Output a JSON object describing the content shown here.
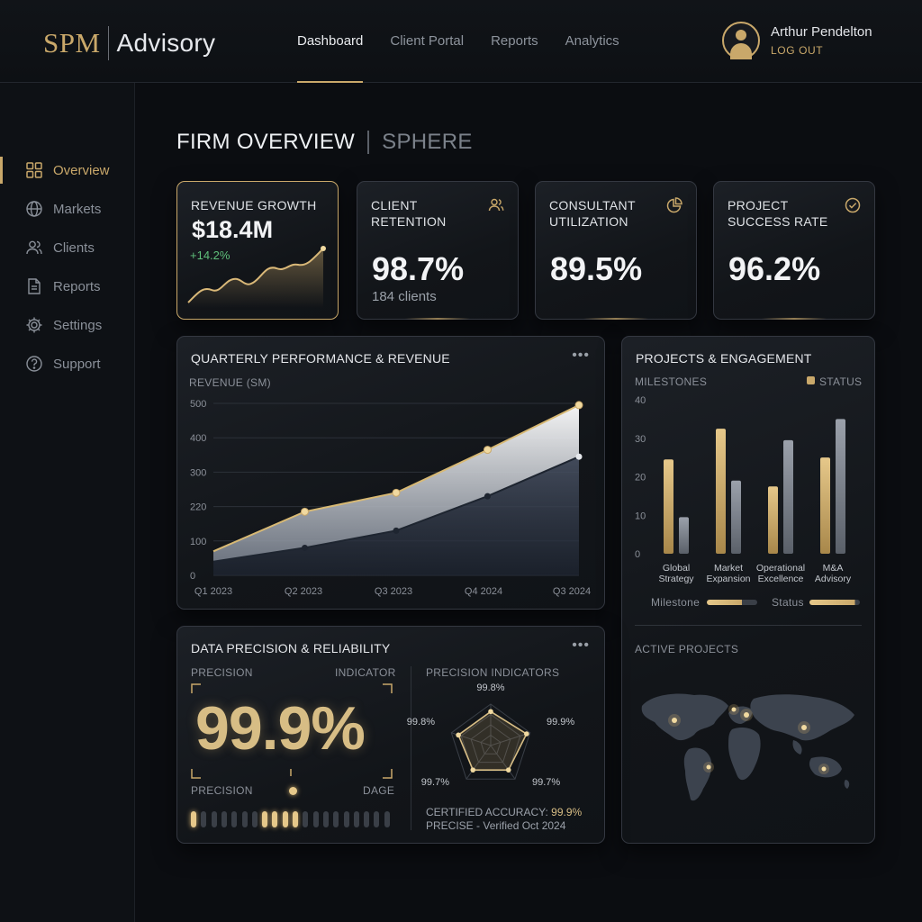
{
  "brand": {
    "mark": "SPM",
    "name": "Advisory"
  },
  "nav": {
    "dashboard": "Dashboard",
    "client_portal": "Client Portal",
    "reports": "Reports",
    "analytics": "Analytics"
  },
  "user": {
    "name": "Arthur Pendelton",
    "logout": "LOG OUT"
  },
  "sidebar": {
    "items": [
      {
        "label": "Overview",
        "icon": "grid-icon"
      },
      {
        "label": "Markets",
        "icon": "globe-icon"
      },
      {
        "label": "Clients",
        "icon": "users-icon"
      },
      {
        "label": "Reports",
        "icon": "document-icon"
      },
      {
        "label": "Settings",
        "icon": "gear-icon"
      },
      {
        "label": "Support",
        "icon": "help-icon"
      }
    ]
  },
  "page": {
    "title": "FIRM OVERVIEW",
    "subtitle": "SPHERE"
  },
  "kpis": {
    "revenue": {
      "label": "REVENUE GROWTH",
      "value": "$18.4M",
      "change": "+14.2%"
    },
    "retention": {
      "label_1": "CLIENT",
      "label_2": "RETENTION",
      "value": "98.7%",
      "sub": "184 clients"
    },
    "utilization": {
      "label_1": "CONSULTANT",
      "label_2": "UTILIZATION",
      "value": "89.5%"
    },
    "success": {
      "label_1": "PROJECT",
      "label_2": "SUCCESS RATE",
      "value": "96.2%"
    }
  },
  "quarterly": {
    "title": "QUARTERLY PERFORMANCE & REVENUE",
    "more": "•••"
  },
  "projects": {
    "title": "PROJECTS & ENGAGEMENT",
    "milestones_label": "MILESTONES",
    "legend_milestone": "Milestone",
    "legend_status": "Status",
    "active_label": "ACTIVE PROJECTS"
  },
  "precision": {
    "title": "DATA PRECISION & RELIABILITY",
    "more": "•••",
    "label_left": "PRECISION",
    "label_right": "INDICATOR",
    "value": "99.9%",
    "bottom_left": "PRECISION",
    "bottom_right": "DAGE",
    "indicators_label": "PRECISION INDICATORS",
    "radar_labels": [
      "99.8%",
      "99.9%",
      "99.7%",
      "99.7%",
      "99.8%"
    ],
    "certified_prefix": "CERTIFIED ACCURACY:",
    "certified_value": "99.9%",
    "verified": "PRECISE - Verified Oct 2024"
  },
  "colors": {
    "accent": "#c9a86a",
    "positive": "#5fbf7a",
    "background": "#0b0d11"
  },
  "chart_data": [
    {
      "type": "area",
      "title": "QUARTERLY PERFORMANCE & REVENUE",
      "ylabel": "REVENUE (SM)",
      "y_ticks": [
        "0",
        "100",
        "220",
        "300",
        "400",
        "500"
      ],
      "x_ticks": [
        "Q1 2023",
        "Q2 2023",
        "Q3 2023",
        "Q4 2024",
        "Q3 2024"
      ],
      "ylim": [
        0,
        500
      ],
      "series": [
        {
          "values": [
            70,
            185,
            240,
            365,
            495
          ]
        },
        {
          "values": [
            40,
            80,
            130,
            230,
            345
          ]
        }
      ],
      "grid": true
    },
    {
      "type": "bar",
      "title": "MILESTONES",
      "legend": "STATUS",
      "categories": [
        "Global Strategy",
        "Market Expansion",
        "Operational Excellence",
        "M&A Advisory"
      ],
      "y_ticks": [
        "0",
        "10",
        "20",
        "30",
        "40"
      ],
      "ylim": [
        0,
        40
      ],
      "series": [
        {
          "name": "Milestone",
          "values": [
            24.5,
            32.5,
            17.5,
            25
          ]
        },
        {
          "name": "Status",
          "values": [
            9.5,
            19,
            29.5,
            35
          ]
        }
      ]
    },
    {
      "type": "radar",
      "title": "PRECISION INDICATORS",
      "categories": [
        "99.8%",
        "99.9%",
        "99.7%",
        "99.7%",
        "99.8%"
      ],
      "values": [
        99.8,
        99.9,
        99.7,
        99.7,
        99.8
      ]
    }
  ]
}
